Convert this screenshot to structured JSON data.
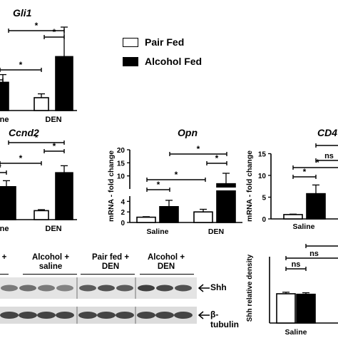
{
  "legend": {
    "pair_fed": "Pair Fed",
    "alcohol_fed": "Alcohol Fed",
    "colors": {
      "pair_fed": "#ffffff",
      "alcohol_fed": "#000000"
    }
  },
  "chart_data": [
    {
      "id": "gli1",
      "type": "bar",
      "title": "Gli1",
      "categories": [
        "Saline",
        "DEN"
      ],
      "visible_categories": [
        "line",
        "DEN"
      ],
      "series": [
        {
          "name": "Pair Fed",
          "values": [
            null,
            1.0
          ],
          "errors": [
            null,
            0.3
          ]
        },
        {
          "name": "Alcohol Fed",
          "values": [
            2.2,
            4.2
          ],
          "errors": [
            0.6,
            2.3
          ]
        }
      ],
      "significance": [
        {
          "label": "*",
          "groups": [
            "Saline",
            "DEN"
          ]
        },
        {
          "label": "*",
          "groups": [
            "Saline",
            "DEN"
          ]
        },
        {
          "label": "*",
          "groups": [
            "DEN",
            "DEN"
          ]
        },
        {
          "label": "*",
          "groups": [
            "Saline",
            "Saline"
          ]
        }
      ]
    },
    {
      "id": "ccnd2",
      "type": "bar",
      "title": "Ccnd2",
      "categories": [
        "Saline",
        "DEN"
      ],
      "visible_categories": [
        "line",
        "DEN"
      ],
      "series": [
        {
          "name": "Pair Fed",
          "values": [
            null,
            0.9
          ],
          "errors": [
            null,
            0.1
          ]
        },
        {
          "name": "Alcohol Fed",
          "values": [
            3.3,
            4.7
          ],
          "errors": [
            0.6,
            0.7
          ]
        }
      ],
      "significance": [
        {
          "label": "*",
          "groups": [
            "Saline",
            "DEN"
          ]
        },
        {
          "label": "*",
          "groups": [
            "Saline",
            "DEN"
          ]
        },
        {
          "label": "*",
          "groups": [
            "DEN",
            "DEN"
          ]
        },
        {
          "label": "*",
          "groups": [
            "Saline",
            "Saline"
          ]
        }
      ]
    },
    {
      "id": "opn",
      "type": "bar",
      "title": "Opn",
      "ylabel": "mRNA - fold change",
      "categories": [
        "Saline",
        "DEN"
      ],
      "y_ticks_lower": [
        "0",
        "2",
        "4"
      ],
      "y_ticks_upper": [
        "10",
        "15",
        "20"
      ],
      "ylim_lower": [
        0,
        5
      ],
      "ylim_upper": [
        5,
        20
      ],
      "series": [
        {
          "name": "Pair Fed",
          "values": [
            1.0,
            2.0
          ],
          "errors": [
            0.1,
            0.5
          ]
        },
        {
          "name": "Alcohol Fed",
          "values": [
            3.0,
            7.0
          ],
          "errors": [
            1.2,
            4.0
          ]
        }
      ],
      "significance": [
        {
          "label": "*",
          "groups": [
            "Saline",
            "DEN"
          ]
        },
        {
          "label": "*",
          "groups": [
            "Saline",
            "DEN"
          ]
        },
        {
          "label": "*",
          "groups": [
            "DEN",
            "DEN"
          ]
        },
        {
          "label": "*",
          "groups": [
            "Saline",
            "Saline"
          ]
        }
      ]
    },
    {
      "id": "cd",
      "type": "bar",
      "title": "CD4",
      "ylabel": "mRNA - fold change",
      "categories": [
        "Saline"
      ],
      "y_ticks": [
        "0",
        "5",
        "10",
        "15"
      ],
      "ylim": [
        0,
        15
      ],
      "series": [
        {
          "name": "Pair Fed",
          "values": [
            1.0
          ],
          "errors": [
            0.1
          ]
        },
        {
          "name": "Alcohol Fed",
          "values": [
            5.8
          ],
          "errors": [
            2.0
          ]
        }
      ],
      "significance": [
        {
          "label": "*",
          "groups": [
            "Saline",
            "Saline"
          ]
        },
        {
          "label": "*",
          "groups": [
            "Saline",
            "other"
          ]
        },
        {
          "label": "ns",
          "groups": [
            "Saline",
            "other"
          ]
        }
      ]
    },
    {
      "id": "shh-density",
      "type": "bar",
      "ylabel": "Shh relative density",
      "categories": [
        "Saline"
      ],
      "ylim": [
        0,
        10
      ],
      "series": [
        {
          "name": "Pair Fed",
          "values": [
            5.7
          ],
          "errors": [
            0.3
          ]
        },
        {
          "name": "Alcohol Fed",
          "values": [
            5.6
          ],
          "errors": [
            0.3
          ]
        }
      ],
      "significance": [
        {
          "label": "ns",
          "groups": [
            "Saline",
            "Saline"
          ]
        },
        {
          "label": "ns",
          "groups": [
            "Saline",
            "other"
          ]
        }
      ]
    }
  ],
  "western_blot": {
    "lane_groups": [
      "+",
      "Alcohol +\nsaline",
      "Pair fed +\nDEN",
      "Alcohol +\nDEN"
    ],
    "bands": [
      "Shh",
      "β-tubulin"
    ]
  }
}
